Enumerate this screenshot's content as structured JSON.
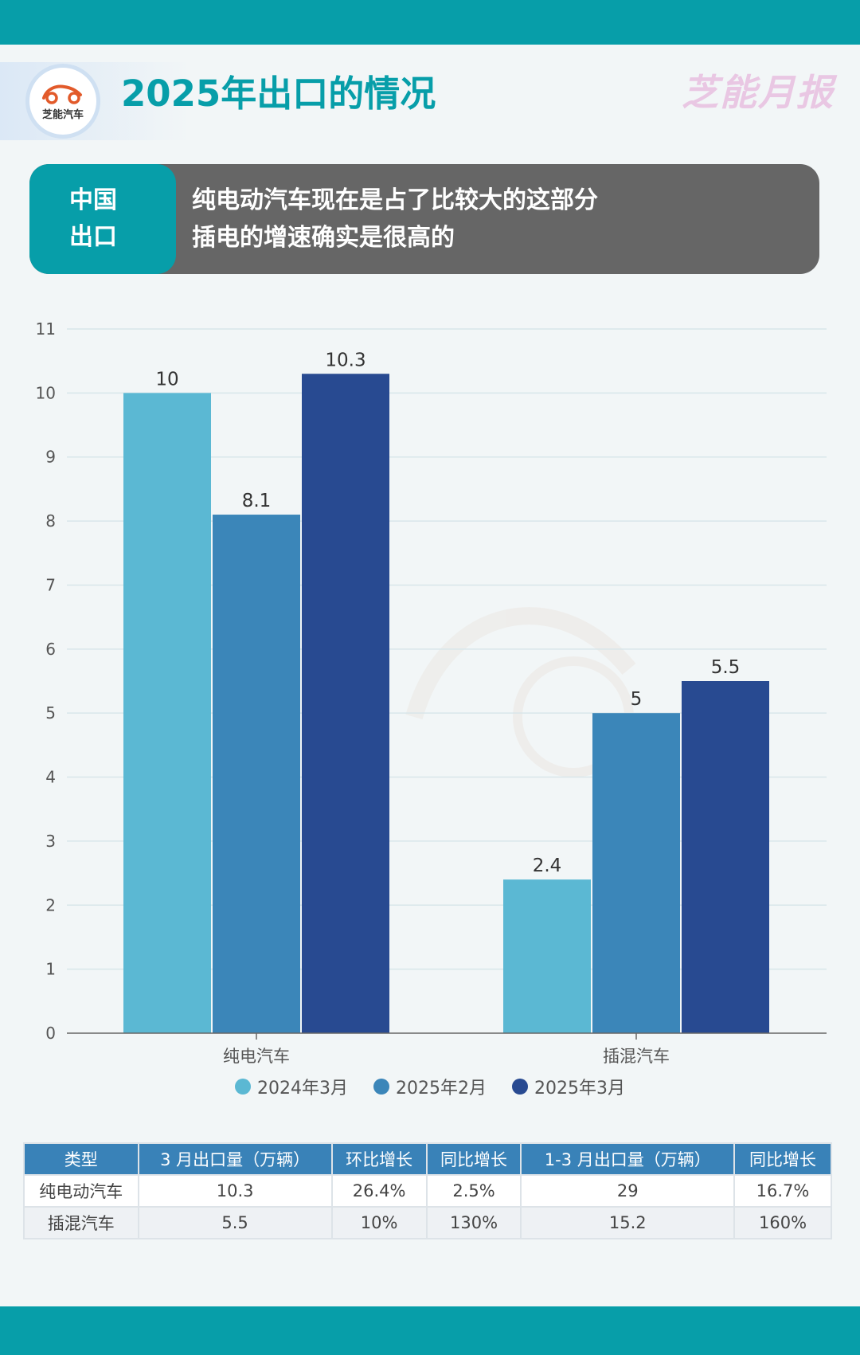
{
  "colors": {
    "teal": "#079ea9",
    "banner_gray": "#666666",
    "brand_pink": "#e8bfe0",
    "bar_2024_03": "#5bb8d3",
    "bar_2025_02": "#3b86b9",
    "bar_2025_03": "#284a91",
    "table_header": "#3982b8",
    "logo_red": "#e25a2a"
  },
  "header": {
    "logo_text": "芝能汽车",
    "title": "2025年出口的情况",
    "brand": "芝能月报"
  },
  "banner": {
    "tag_line1": "中国",
    "tag_line2": "出口",
    "line1": "纯电动汽车现在是占了比较大的这部分",
    "line2": "插电的增速确实是很高的"
  },
  "chart_data": {
    "type": "bar",
    "categories": [
      "纯电汽车",
      "插混汽车"
    ],
    "series": [
      {
        "name": "2024年3月",
        "values": [
          10,
          2.4
        ],
        "color": "#5bb8d3"
      },
      {
        "name": "2025年2月",
        "values": [
          8.1,
          5
        ],
        "color": "#3b86b9"
      },
      {
        "name": "2025年3月",
        "values": [
          10.3,
          5.5
        ],
        "color": "#284a91"
      }
    ],
    "ylim": [
      0,
      11
    ],
    "yticks": [
      0,
      1,
      2,
      3,
      4,
      5,
      6,
      7,
      8,
      9,
      10,
      11
    ],
    "grid": true,
    "legend": "bottom",
    "data_labels": true
  },
  "table": {
    "headers": [
      "类型",
      "3 月出口量（万辆）",
      "环比增长",
      "同比增长",
      "1-3 月出口量（万辆）",
      "同比增长"
    ],
    "rows": [
      [
        "纯电动汽车",
        "10.3",
        "26.4%",
        "2.5%",
        "29",
        "16.7%"
      ],
      [
        "插混汽车",
        "5.5",
        "10%",
        "130%",
        "15.2",
        "160%"
      ]
    ]
  }
}
